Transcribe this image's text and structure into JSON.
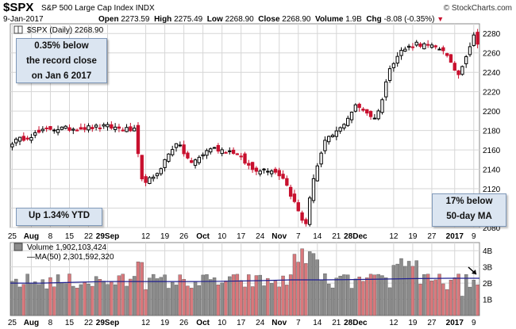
{
  "header": {
    "symbol": "$SPX",
    "name": "S&P 500 Large Cap Index",
    "exchange": "INDX",
    "watermark": "© StockCharts.com",
    "date": "9-Jan-2017",
    "open_label": "Open",
    "open": "2273.59",
    "high_label": "High",
    "high": "2275.49",
    "low_label": "Low",
    "low": "2268.90",
    "close_label": "Close",
    "close": "2268.90",
    "volume_label": "Volume",
    "volume": "1.9B",
    "chg_label": "Chg",
    "chg": "-8.08 (-0.35%)"
  },
  "annotations": {
    "record": [
      "0.35% below",
      "the record close",
      "on Jan 6 2017"
    ],
    "ytd": "Up 1.34% YTD",
    "volume": [
      "17% below",
      "50-day MA"
    ]
  },
  "colors": {
    "up": "#000000",
    "down": "#c8102e",
    "volume_up": "#8c8c8c",
    "volume_down": "#d9787c",
    "ma_line": "#1f1f8f",
    "grid": "#d6d6d6",
    "note_bg": "#dbe5f1"
  },
  "chart_data": [
    {
      "type": "candlestick",
      "legend": "$SPX (Daily) 2268.90",
      "ylim": [
        2080,
        2290
      ],
      "y_ticks": [
        2080,
        2100,
        2120,
        2140,
        2160,
        2180,
        2200,
        2220,
        2240,
        2260,
        2280
      ],
      "x_ticks": [
        "25",
        "Aug",
        "8",
        "15",
        "22",
        "29Sep",
        "12",
        "19",
        "26",
        "Oct",
        "10",
        "17",
        "24",
        "Nov",
        "7",
        "14",
        "21",
        "28Dec",
        "12",
        "19",
        "27",
        "2017",
        "9"
      ],
      "x_tick_bold": [
        "Aug",
        "Sep",
        "Oct",
        "Nov",
        "Dec",
        "2017"
      ],
      "anchors": [
        {
          "i": 0,
          "c": 2168
        },
        {
          "i": 10,
          "c": 2182
        },
        {
          "i": 15,
          "c": 2182
        },
        {
          "i": 25,
          "c": 2184
        },
        {
          "i": 32,
          "c": 2180
        },
        {
          "i": 34,
          "c": 2128
        },
        {
          "i": 37,
          "c": 2130
        },
        {
          "i": 43,
          "c": 2168
        },
        {
          "i": 47,
          "c": 2146
        },
        {
          "i": 52,
          "c": 2162
        },
        {
          "i": 58,
          "c": 2158
        },
        {
          "i": 63,
          "c": 2140
        },
        {
          "i": 68,
          "c": 2140
        },
        {
          "i": 71,
          "c": 2132
        },
        {
          "i": 76,
          "c": 2088
        },
        {
          "i": 77,
          "c": 2085
        },
        {
          "i": 79,
          "c": 2132
        },
        {
          "i": 82,
          "c": 2168
        },
        {
          "i": 86,
          "c": 2182
        },
        {
          "i": 90,
          "c": 2205
        },
        {
          "i": 92,
          "c": 2202
        },
        {
          "i": 95,
          "c": 2192
        },
        {
          "i": 97,
          "c": 2212
        },
        {
          "i": 99,
          "c": 2246
        },
        {
          "i": 102,
          "c": 2262
        },
        {
          "i": 106,
          "c": 2270
        },
        {
          "i": 110,
          "c": 2266
        },
        {
          "i": 113,
          "c": 2264
        },
        {
          "i": 115,
          "c": 2248
        },
        {
          "i": 117,
          "c": 2238
        },
        {
          "i": 119,
          "c": 2258
        },
        {
          "i": 121,
          "c": 2277
        },
        {
          "i": 122,
          "c": 2269
        }
      ]
    },
    {
      "type": "bar",
      "legend_volume": "Volume 1,902,103,424",
      "legend_ma": "MA(50) 2,301,592,320",
      "ylim": [
        0,
        4500000000
      ],
      "y_ticks": [
        {
          "v": 1000000000,
          "label": "1B"
        },
        {
          "v": 2000000000,
          "label": "2B"
        },
        {
          "v": 3000000000,
          "label": "3B"
        },
        {
          "v": 4000000000,
          "label": "4B"
        }
      ],
      "ma50": [
        2.0,
        2.0,
        2.05,
        2.1,
        2.1,
        2.1,
        2.1,
        2.12,
        2.15,
        2.2,
        2.2,
        2.22,
        2.25,
        2.28,
        2.3,
        2.3
      ],
      "last_volume": 1902103424
    }
  ]
}
